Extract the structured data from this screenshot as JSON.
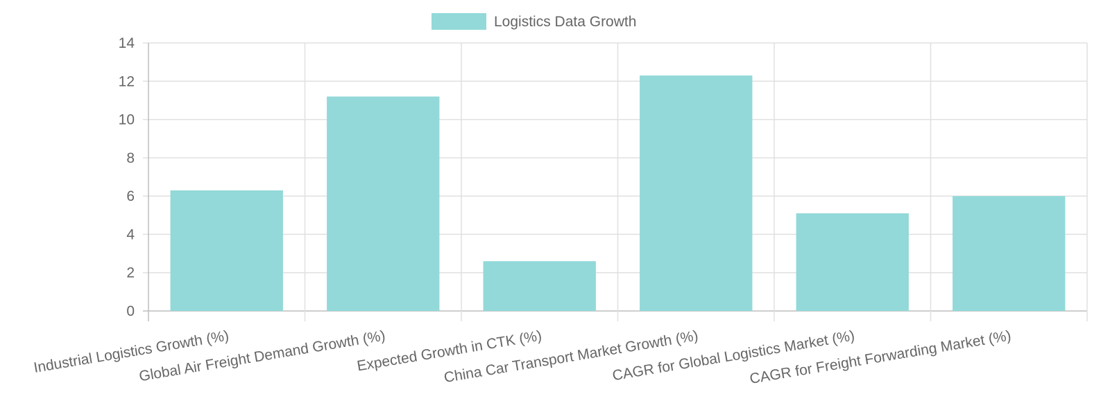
{
  "chart_data": {
    "type": "bar",
    "categories": [
      "Industrial Logistics Growth (%)",
      "Global Air Freight Demand Growth (%)",
      "Expected Growth in CTK (%)",
      "China Car Transport Market Growth (%)",
      "CAGR for Global Logistics Market (%)",
      "CAGR for Freight Forwarding Market (%)"
    ],
    "series": [
      {
        "name": "Logistics Data Growth",
        "values": [
          6.3,
          11.2,
          2.6,
          12.3,
          5.1,
          6.0
        ]
      }
    ],
    "ylim": [
      0,
      14
    ],
    "yticks": [
      0,
      2,
      4,
      6,
      8,
      10,
      12,
      14
    ],
    "grid": true,
    "legend": "top",
    "colors": {
      "bar": "#93d9d9",
      "grid": "#e0e0e0",
      "text": "#666666"
    }
  }
}
